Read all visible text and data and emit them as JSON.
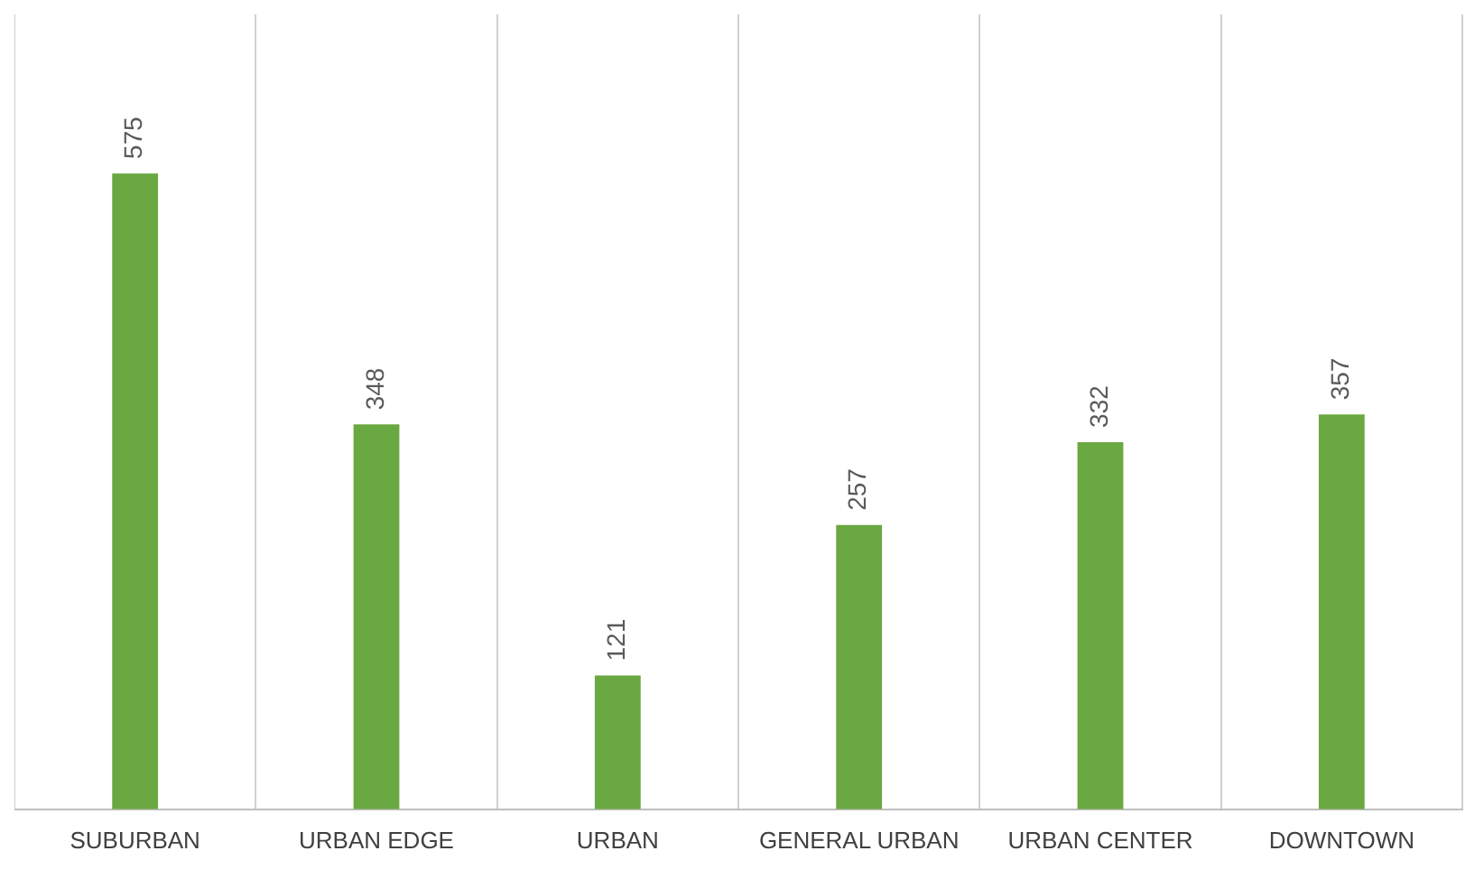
{
  "chart_data": {
    "type": "bar",
    "categories": [
      "SUBURBAN",
      "URBAN EDGE",
      "URBAN",
      "GENERAL URBAN",
      "URBAN CENTER",
      "DOWNTOWN"
    ],
    "values": [
      575,
      348,
      121,
      257,
      332,
      357
    ],
    "color": "#6aa842",
    "data_labels": true,
    "grid": "x"
  }
}
